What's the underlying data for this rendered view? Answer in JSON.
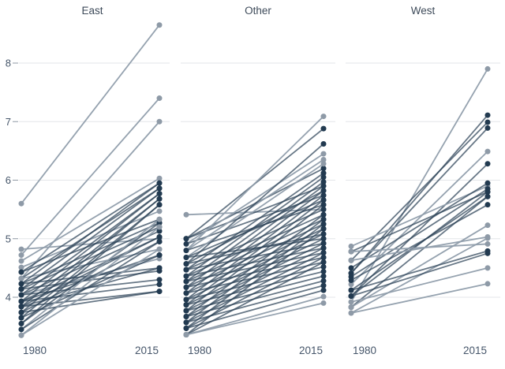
{
  "colors": {
    "background": "#ffffff",
    "panel_title_text": "#3d4a59",
    "axis_label_text": "#46566a",
    "gridline": "#e3e6e9",
    "tick_mark": "#8f99a4",
    "dot_light": "#8e9aa7",
    "dot_dark": "#223a50",
    "line_light": "#8f9dab",
    "line_dark": "#2c4357"
  },
  "chart_data": {
    "type": "line",
    "subtype": "slopegraph",
    "title": "",
    "xlabel": "",
    "ylabel": "",
    "x_categories": [
      "1980",
      "2015"
    ],
    "y_ticks": [
      4,
      5,
      6,
      7,
      8
    ],
    "y_range": [
      3.3,
      8.8
    ],
    "grid": true,
    "legend": false,
    "shade_colors": {
      "light": "#8e9aa7",
      "dark": "#223a50"
    },
    "panels": [
      {
        "title": "East",
        "segments": [
          [
            5.6,
            8.65,
            "light"
          ],
          [
            4.72,
            7.4,
            "light"
          ],
          [
            4.32,
            7.0,
            "light"
          ],
          [
            4.82,
            5.0,
            "light"
          ],
          [
            4.62,
            6.03,
            "light"
          ],
          [
            4.51,
            5.47,
            "light"
          ],
          [
            4.43,
            5.95,
            "dark"
          ],
          [
            4.43,
            5.33,
            "dark"
          ],
          [
            4.32,
            5.86,
            "dark"
          ],
          [
            4.32,
            4.82,
            "light"
          ],
          [
            4.23,
            5.95,
            "dark"
          ],
          [
            4.23,
            5.27,
            "dark"
          ],
          [
            4.23,
            4.5,
            "dark"
          ],
          [
            4.14,
            5.86,
            "dark"
          ],
          [
            4.14,
            5.2,
            "dark"
          ],
          [
            4.14,
            4.45,
            "dark"
          ],
          [
            4.04,
            5.77,
            "dark"
          ],
          [
            4.04,
            5.13,
            "dark"
          ],
          [
            4.04,
            4.66,
            "light"
          ],
          [
            4.04,
            4.3,
            "dark"
          ],
          [
            3.93,
            5.77,
            "dark"
          ],
          [
            3.93,
            5.03,
            "dark"
          ],
          [
            3.93,
            4.72,
            "dark"
          ],
          [
            3.93,
            4.22,
            "dark"
          ],
          [
            3.84,
            5.68,
            "dark"
          ],
          [
            3.84,
            5.03,
            "dark"
          ],
          [
            3.84,
            4.5,
            "dark"
          ],
          [
            3.84,
            4.1,
            "dark"
          ],
          [
            3.74,
            5.68,
            "dark"
          ],
          [
            3.74,
            4.95,
            "dark"
          ],
          [
            3.74,
            4.1,
            "dark"
          ],
          [
            3.65,
            5.58,
            "dark"
          ],
          [
            3.65,
            4.72,
            "dark"
          ],
          [
            3.55,
            5.58,
            "dark"
          ],
          [
            3.55,
            5.27,
            "dark"
          ],
          [
            3.45,
            5.33,
            "light"
          ],
          [
            3.45,
            4.95,
            "dark"
          ],
          [
            3.35,
            5.2,
            "light"
          ],
          [
            3.35,
            4.82,
            "light"
          ]
        ]
      },
      {
        "title": "Other",
        "segments": [
          [
            5.41,
            5.5,
            "light"
          ],
          [
            5.0,
            6.88,
            "dark"
          ],
          [
            5.0,
            6.2,
            "dark"
          ],
          [
            5.0,
            5.9,
            "dark"
          ],
          [
            4.91,
            6.45,
            "light"
          ],
          [
            4.91,
            5.74,
            "dark"
          ],
          [
            4.8,
            7.09,
            "light"
          ],
          [
            4.8,
            6.35,
            "light"
          ],
          [
            4.8,
            5.58,
            "dark"
          ],
          [
            4.68,
            6.28,
            "light"
          ],
          [
            4.68,
            5.66,
            "dark"
          ],
          [
            4.68,
            5.0,
            "dark"
          ],
          [
            4.57,
            6.62,
            "dark"
          ],
          [
            4.57,
            5.82,
            "dark"
          ],
          [
            4.57,
            5.08,
            "dark"
          ],
          [
            4.47,
            6.12,
            "dark"
          ],
          [
            4.47,
            5.5,
            "dark"
          ],
          [
            4.47,
            4.92,
            "dark"
          ],
          [
            4.36,
            6.05,
            "dark"
          ],
          [
            4.36,
            5.41,
            "dark"
          ],
          [
            4.36,
            4.84,
            "dark"
          ],
          [
            4.27,
            5.97,
            "dark"
          ],
          [
            4.27,
            5.33,
            "dark"
          ],
          [
            4.27,
            4.76,
            "dark"
          ],
          [
            4.17,
            5.9,
            "dark"
          ],
          [
            4.17,
            5.25,
            "dark"
          ],
          [
            4.17,
            4.68,
            "dark"
          ],
          [
            4.07,
            5.82,
            "dark"
          ],
          [
            4.07,
            5.17,
            "dark"
          ],
          [
            4.07,
            4.6,
            "dark"
          ],
          [
            3.96,
            5.74,
            "dark"
          ],
          [
            3.96,
            5.08,
            "dark"
          ],
          [
            3.96,
            4.52,
            "dark"
          ],
          [
            3.87,
            5.66,
            "dark"
          ],
          [
            3.87,
            5.0,
            "dark"
          ],
          [
            3.87,
            4.44,
            "dark"
          ],
          [
            3.77,
            5.58,
            "dark"
          ],
          [
            3.77,
            4.92,
            "dark"
          ],
          [
            3.77,
            4.36,
            "dark"
          ],
          [
            3.67,
            5.41,
            "dark"
          ],
          [
            3.67,
            4.84,
            "dark"
          ],
          [
            3.67,
            4.28,
            "dark"
          ],
          [
            3.57,
            5.33,
            "dark"
          ],
          [
            3.57,
            4.76,
            "dark"
          ],
          [
            3.57,
            4.2,
            "dark"
          ],
          [
            3.47,
            5.25,
            "dark"
          ],
          [
            3.47,
            4.68,
            "dark"
          ],
          [
            3.47,
            4.12,
            "dark"
          ],
          [
            3.36,
            5.17,
            "dark"
          ],
          [
            3.36,
            4.6,
            "dark"
          ],
          [
            3.36,
            4.01,
            "light"
          ],
          [
            3.36,
            3.9,
            "light"
          ]
        ]
      },
      {
        "title": "West",
        "segments": [
          [
            3.92,
            7.9,
            "light"
          ],
          [
            4.41,
            7.11,
            "dark"
          ],
          [
            4.63,
            6.99,
            "dark"
          ],
          [
            4.41,
            6.89,
            "dark"
          ],
          [
            4.22,
            6.49,
            "light"
          ],
          [
            4.02,
            6.28,
            "dark"
          ],
          [
            4.87,
            5.9,
            "light"
          ],
          [
            4.78,
            5.8,
            "dark"
          ],
          [
            4.02,
            5.8,
            "dark"
          ],
          [
            4.5,
            5.95,
            "dark"
          ],
          [
            4.35,
            5.85,
            "dark"
          ],
          [
            4.12,
            5.72,
            "dark"
          ],
          [
            3.83,
            5.72,
            "dark"
          ],
          [
            4.29,
            5.58,
            "dark"
          ],
          [
            3.83,
            5.23,
            "light"
          ],
          [
            4.63,
            5.03,
            "light"
          ],
          [
            3.73,
            5.01,
            "light"
          ],
          [
            4.78,
            4.91,
            "light"
          ],
          [
            4.12,
            4.79,
            "dark"
          ],
          [
            4.02,
            4.75,
            "dark"
          ],
          [
            3.92,
            4.5,
            "light"
          ],
          [
            3.73,
            4.23,
            "light"
          ]
        ]
      }
    ]
  },
  "layout_labels": {
    "panel_titles": [
      "East",
      "Other",
      "West"
    ],
    "y_tick_labels": [
      "8",
      "7",
      "6",
      "5",
      "4"
    ],
    "x_tick_labels": [
      "1980",
      "2015"
    ]
  }
}
